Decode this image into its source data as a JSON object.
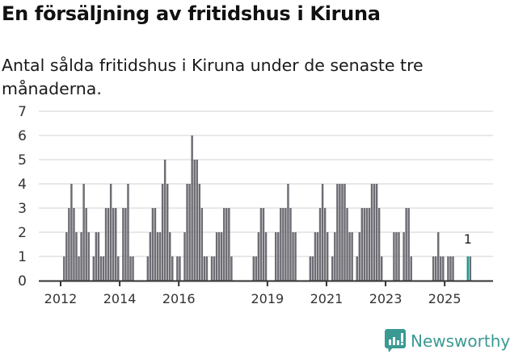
{
  "header": {
    "title": "En försäljning av fritidshus i Kiruna",
    "subtitle": "Antal sålda fritidshus i Kiruna under de senaste tre månaderna."
  },
  "branding": {
    "logo_icon": "newsworthy-chart-bubble-icon",
    "logo_text": "Newsworthy",
    "color": "#3a9a92"
  },
  "colors": {
    "bar": "#6d6c73",
    "highlight": "#1a9c8f",
    "grid": "#e0e0e0",
    "axis": "#333333"
  },
  "chart_data": {
    "type": "bar",
    "title": "En försäljning av fritidshus i Kiruna",
    "subtitle": "Antal sålda fritidshus i Kiruna under de senaste tre månaderna.",
    "xlabel": "",
    "ylabel": "",
    "ylim": [
      0,
      7
    ],
    "yticks": [
      0,
      1,
      2,
      3,
      4,
      5,
      6,
      7
    ],
    "xticks": [
      "2012",
      "2014",
      "2016",
      "2019",
      "2021",
      "2023",
      "2025"
    ],
    "grid": true,
    "legend": null,
    "start": "2012-01",
    "granularity": "month",
    "annotation": {
      "label": "1",
      "index": 165
    },
    "highlight_index": 165,
    "values": [
      0,
      1,
      2,
      3,
      4,
      3,
      2,
      1,
      2,
      4,
      3,
      2,
      0,
      1,
      2,
      2,
      1,
      1,
      3,
      3,
      4,
      3,
      3,
      1,
      0,
      3,
      3,
      4,
      1,
      1,
      0,
      0,
      0,
      0,
      0,
      1,
      2,
      3,
      3,
      2,
      2,
      4,
      5,
      4,
      2,
      1,
      0,
      1,
      1,
      0,
      2,
      4,
      4,
      6,
      5,
      5,
      4,
      3,
      1,
      1,
      0,
      1,
      1,
      2,
      2,
      2,
      3,
      3,
      3,
      1,
      0,
      0,
      0,
      0,
      0,
      0,
      0,
      0,
      1,
      1,
      2,
      3,
      3,
      2,
      0,
      0,
      0,
      2,
      2,
      3,
      3,
      3,
      4,
      3,
      2,
      2,
      0,
      0,
      0,
      0,
      0,
      1,
      1,
      2,
      2,
      3,
      4,
      3,
      2,
      0,
      1,
      2,
      4,
      4,
      4,
      4,
      3,
      2,
      2,
      0,
      1,
      2,
      3,
      3,
      3,
      3,
      4,
      4,
      4,
      3,
      1,
      0,
      0,
      0,
      0,
      2,
      2,
      2,
      0,
      2,
      3,
      3,
      1,
      0,
      0,
      0,
      0,
      0,
      0,
      0,
      0,
      1,
      1,
      2,
      1,
      1,
      0,
      1,
      1,
      1,
      0,
      0,
      0,
      0,
      0,
      1,
      1,
      0
    ]
  }
}
